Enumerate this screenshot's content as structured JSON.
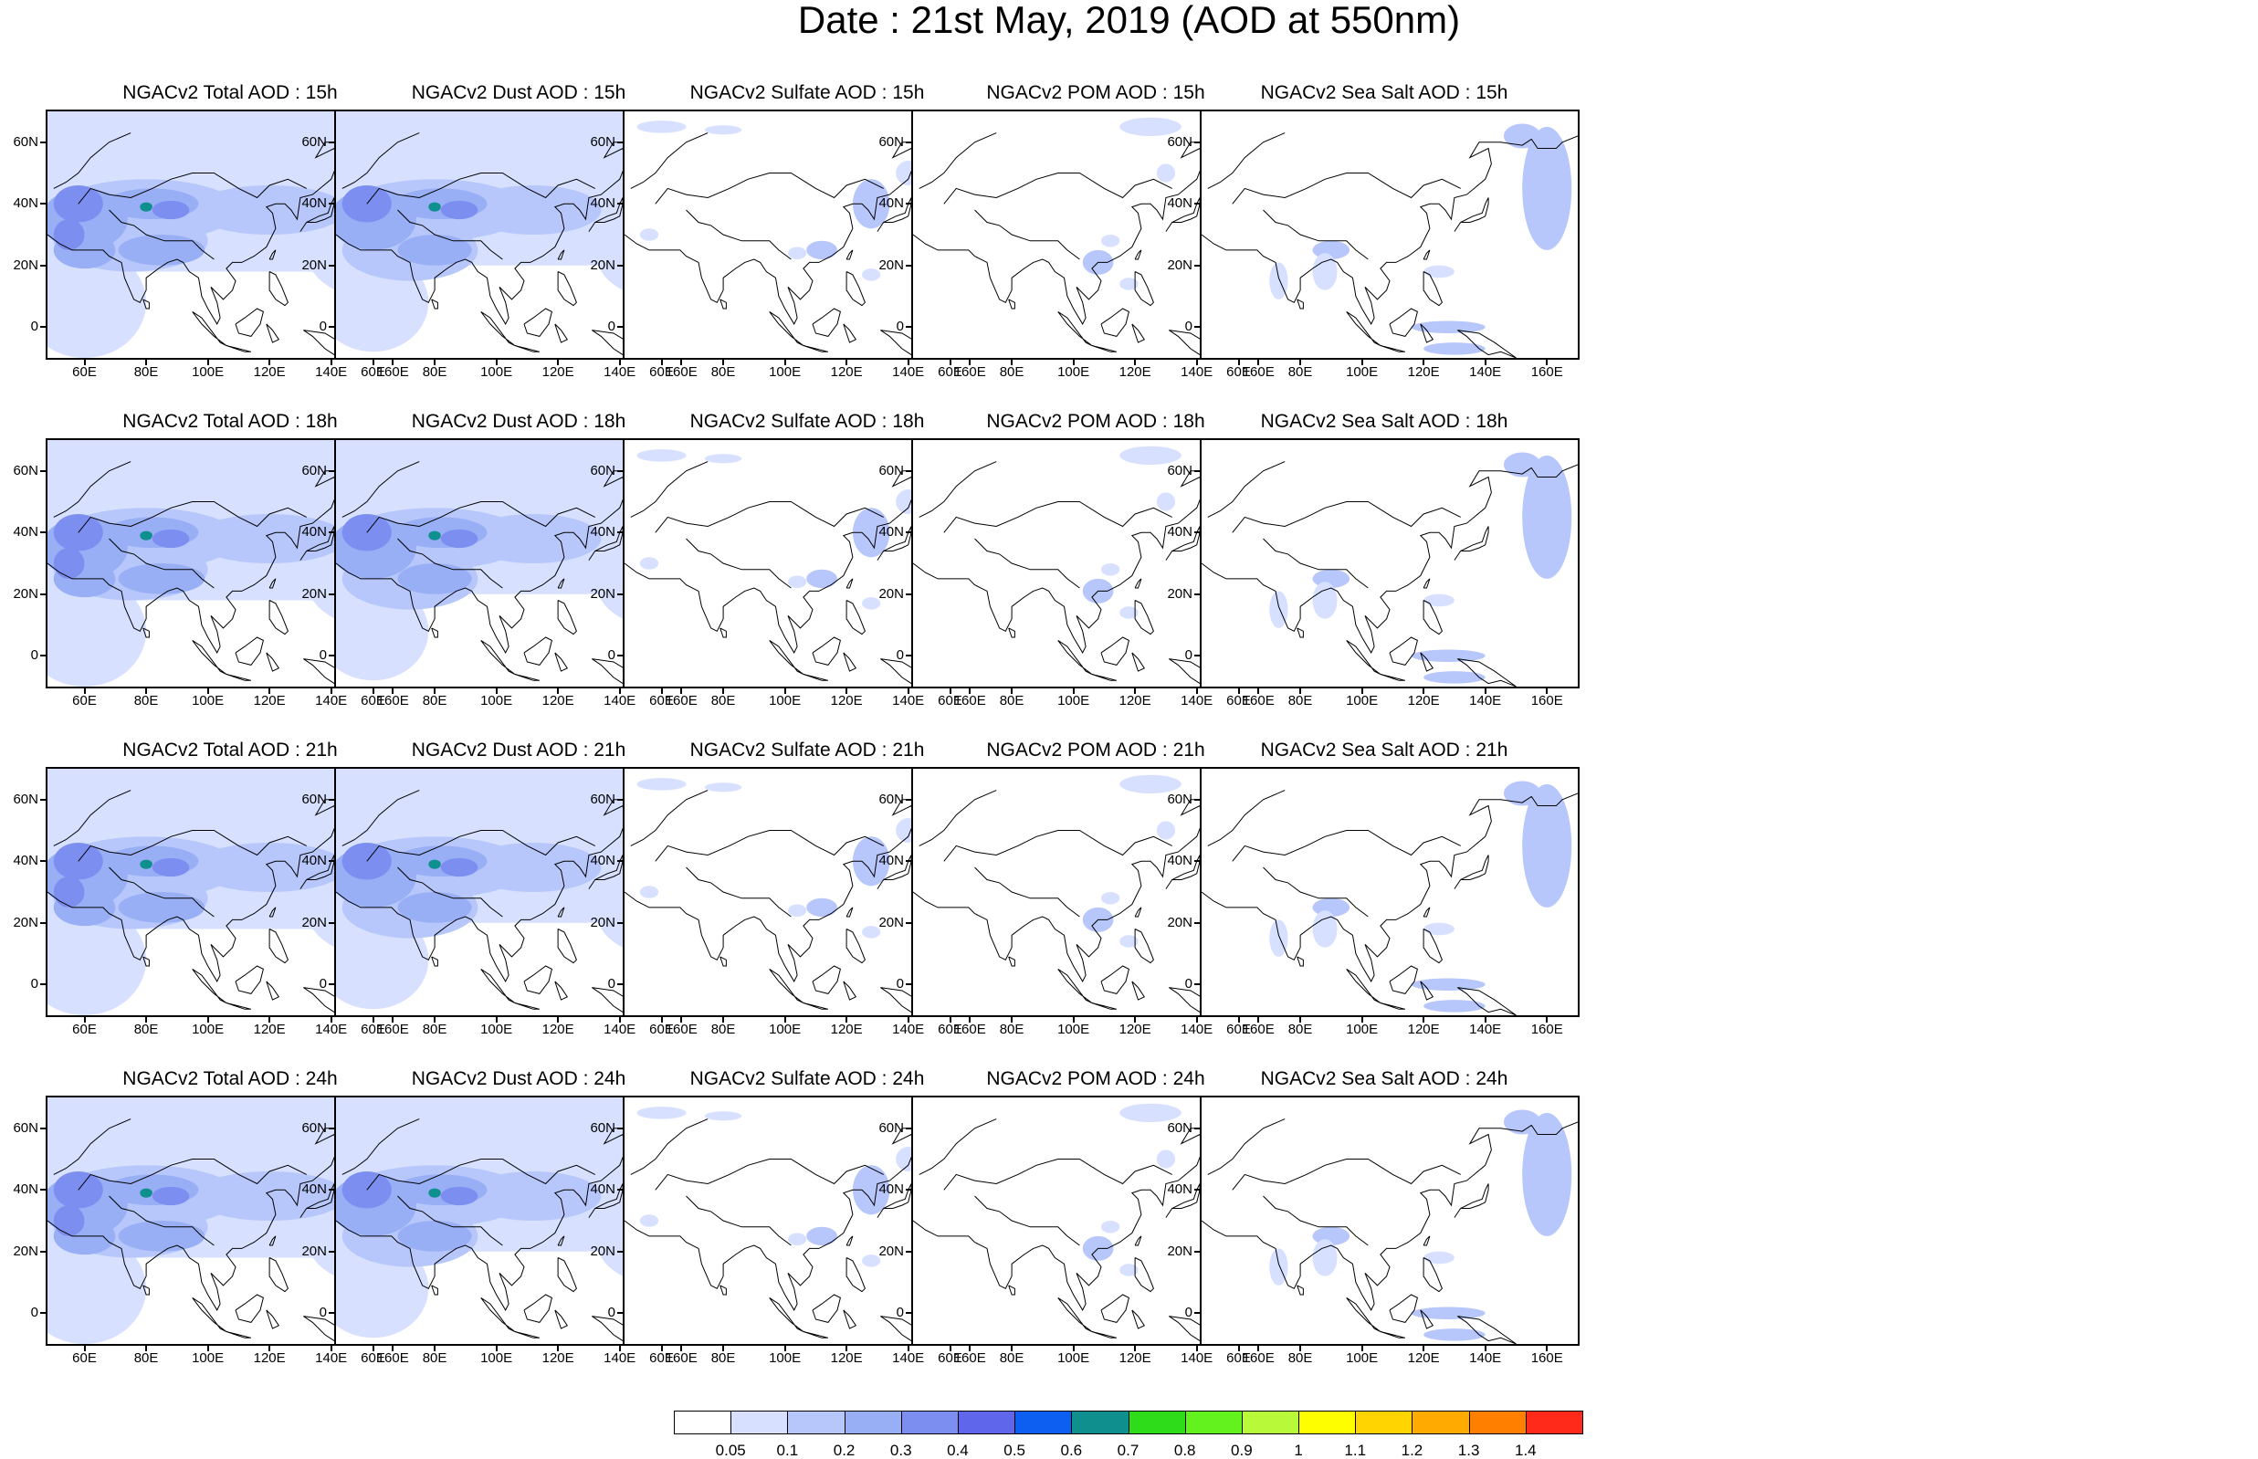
{
  "title": "Date : 21st May, 2019 (AOD at 550nm)",
  "lat_labels": [
    "60N",
    "40N",
    "20N",
    "0"
  ],
  "lon_labels": [
    "60E",
    "80E",
    "100E",
    "120E",
    "140E",
    "160E"
  ],
  "panels": [
    {
      "title": "NGACv2 Total AOD : 15h",
      "species": "total",
      "hour": "15h"
    },
    {
      "title": "NGACv2 Dust AOD : 15h",
      "species": "dust",
      "hour": "15h"
    },
    {
      "title": "NGACv2 Sulfate AOD : 15h",
      "species": "sulfate",
      "hour": "15h"
    },
    {
      "title": "NGACv2 POM AOD : 15h",
      "species": "pom",
      "hour": "15h"
    },
    {
      "title": "NGACv2 Sea Salt AOD : 15h",
      "species": "seasalt",
      "hour": "15h"
    },
    {
      "title": "NGACv2 Total AOD : 18h",
      "species": "total",
      "hour": "18h"
    },
    {
      "title": "NGACv2 Dust AOD : 18h",
      "species": "dust",
      "hour": "18h"
    },
    {
      "title": "NGACv2 Sulfate AOD : 18h",
      "species": "sulfate",
      "hour": "18h"
    },
    {
      "title": "NGACv2 POM AOD : 18h",
      "species": "pom",
      "hour": "18h"
    },
    {
      "title": "NGACv2 Sea Salt AOD : 18h",
      "species": "seasalt",
      "hour": "18h"
    },
    {
      "title": "NGACv2 Total AOD : 21h",
      "species": "total",
      "hour": "21h"
    },
    {
      "title": "NGACv2 Dust AOD : 21h",
      "species": "dust",
      "hour": "21h"
    },
    {
      "title": "NGACv2 Sulfate AOD : 21h",
      "species": "sulfate",
      "hour": "21h"
    },
    {
      "title": "NGACv2 POM AOD : 21h",
      "species": "pom",
      "hour": "21h"
    },
    {
      "title": "NGACv2 Sea Salt AOD : 21h",
      "species": "seasalt",
      "hour": "21h"
    },
    {
      "title": "NGACv2 Total AOD : 24h",
      "species": "total",
      "hour": "24h"
    },
    {
      "title": "NGACv2 Dust AOD : 24h",
      "species": "dust",
      "hour": "24h"
    },
    {
      "title": "NGACv2 Sulfate AOD : 24h",
      "species": "sulfate",
      "hour": "24h"
    },
    {
      "title": "NGACv2 POM AOD : 24h",
      "species": "pom",
      "hour": "24h"
    },
    {
      "title": "NGACv2 Sea Salt  AOD : 24h",
      "species": "seasalt",
      "hour": "24h"
    }
  ],
  "colorbar": {
    "labels": [
      "0.05",
      "0.1",
      "0.2",
      "0.3",
      "0.4",
      "0.5",
      "0.6",
      "0.7",
      "0.8",
      "0.9",
      "1",
      "1.1",
      "1.2",
      "1.3",
      "1.4"
    ],
    "colors": [
      "#ffffff",
      "#d7e1ff",
      "#b7c7fb",
      "#98aef5",
      "#7c8ff0",
      "#5f66ec",
      "#0d5ff2",
      "#0f8f8e",
      "#2edc1a",
      "#63f21e",
      "#b8f93a",
      "#fefe00",
      "#ffd400",
      "#ffaa00",
      "#ff7f00",
      "#ff2a1a"
    ]
  }
}
